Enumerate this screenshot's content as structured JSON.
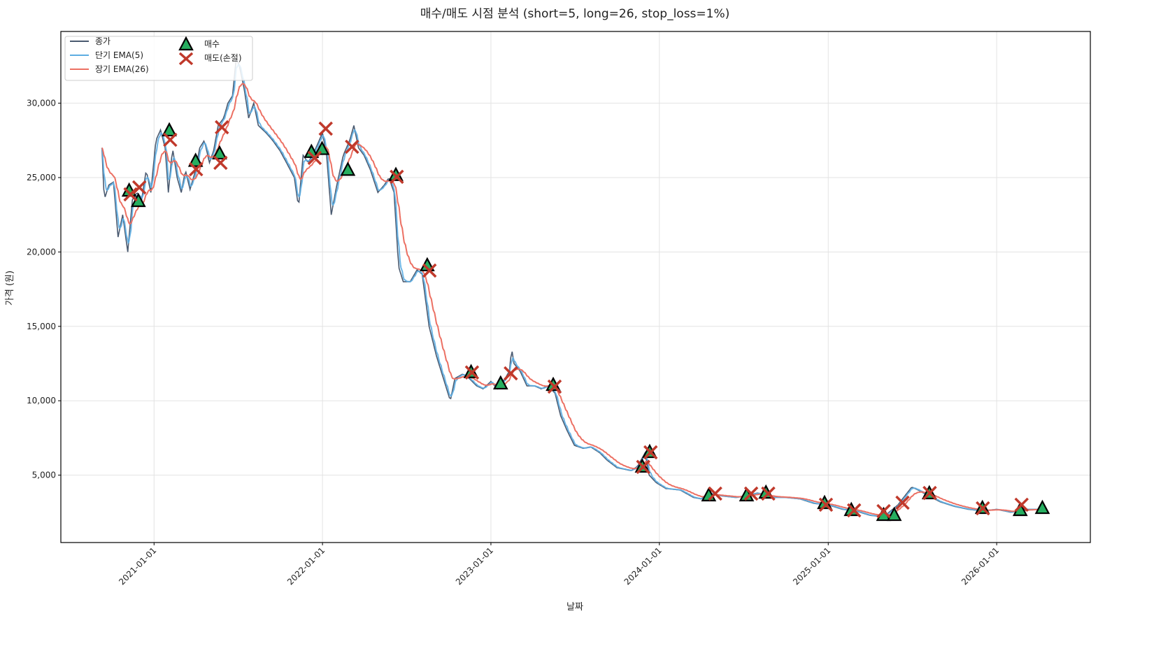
{
  "chart_data": {
    "type": "line",
    "title": "매수/매도 시점 분석 (short=5, long=26, stop_loss=1%)",
    "xlabel": "날짜",
    "ylabel": "가격 (원)",
    "xlim": [
      "2020-06-13",
      "2026-07-23"
    ],
    "ylim": [
      470,
      34820
    ],
    "grid": true,
    "legend_placement": "top-left",
    "legend": [
      {
        "label": "종가",
        "color": "#4a5a70",
        "kind": "line"
      },
      {
        "label": "단기 EMA(5)",
        "color": "#5dade2",
        "kind": "line"
      },
      {
        "label": "장기 EMA(26)",
        "color": "#ec7063",
        "kind": "line"
      },
      {
        "label": "매수",
        "color": "#27ae60",
        "kind": "triangle"
      },
      {
        "label": "매도(손절)",
        "color": "#c0392b",
        "kind": "x"
      }
    ],
    "ema_short_span": 5,
    "ema_long_span": 26,
    "x_ticks": [
      "2021-01-01",
      "2022-01-01",
      "2023-01-01",
      "2024-01-01",
      "2025-01-01",
      "2026-01-01"
    ],
    "y_ticks": [
      5000,
      10000,
      15000,
      20000,
      25000,
      30000
    ],
    "y_tick_labels": [
      "5,000",
      "10,000",
      "15,000",
      "20,000",
      "25,000",
      "30,000"
    ],
    "close": [
      [
        "2020-09-10",
        27000
      ],
      [
        "2020-09-15",
        23500
      ],
      [
        "2020-09-25",
        24500
      ],
      [
        "2020-10-05",
        24700
      ],
      [
        "2020-10-15",
        21000
      ],
      [
        "2020-10-25",
        22500
      ],
      [
        "2020-11-05",
        20000
      ],
      [
        "2020-11-15",
        23500
      ],
      [
        "2020-11-25",
        24000
      ],
      [
        "2020-12-05",
        23500
      ],
      [
        "2020-12-15",
        25500
      ],
      [
        "2020-12-25",
        24000
      ],
      [
        "2021-01-05",
        27500
      ],
      [
        "2021-01-15",
        28200
      ],
      [
        "2021-01-25",
        27000
      ],
      [
        "2021-02-01",
        24000
      ],
      [
        "2021-02-10",
        27000
      ],
      [
        "2021-02-20",
        25000
      ],
      [
        "2021-03-01",
        24000
      ],
      [
        "2021-03-10",
        25500
      ],
      [
        "2021-03-20",
        24200
      ],
      [
        "2021-04-01",
        25500
      ],
      [
        "2021-04-10",
        27000
      ],
      [
        "2021-04-20",
        27500
      ],
      [
        "2021-05-01",
        26000
      ],
      [
        "2021-05-10",
        26800
      ],
      [
        "2021-05-20",
        28500
      ],
      [
        "2021-06-01",
        29000
      ],
      [
        "2021-06-10",
        30000
      ],
      [
        "2021-06-20",
        30500
      ],
      [
        "2021-06-28",
        33000
      ],
      [
        "2021-07-05",
        32500
      ],
      [
        "2021-07-15",
        31000
      ],
      [
        "2021-07-25",
        29000
      ],
      [
        "2021-08-05",
        30000
      ],
      [
        "2021-08-15",
        28500
      ],
      [
        "2021-09-01",
        28000
      ],
      [
        "2021-09-15",
        27500
      ],
      [
        "2021-10-01",
        26800
      ],
      [
        "2021-10-15",
        26000
      ],
      [
        "2021-11-01",
        25000
      ],
      [
        "2021-11-10",
        23000
      ],
      [
        "2021-11-20",
        26500
      ],
      [
        "2021-12-01",
        26000
      ],
      [
        "2021-12-15",
        26800
      ],
      [
        "2022-01-01",
        28000
      ],
      [
        "2022-01-10",
        26500
      ],
      [
        "2022-01-20",
        22500
      ],
      [
        "2022-02-01",
        24500
      ],
      [
        "2022-02-15",
        26500
      ],
      [
        "2022-03-01",
        27500
      ],
      [
        "2022-03-10",
        28500
      ],
      [
        "2022-03-20",
        27000
      ],
      [
        "2022-04-01",
        26500
      ],
      [
        "2022-04-15",
        25500
      ],
      [
        "2022-05-01",
        24000
      ],
      [
        "2022-05-15",
        24500
      ],
      [
        "2022-05-25",
        25000
      ],
      [
        "2022-06-05",
        24000
      ],
      [
        "2022-06-15",
        19000
      ],
      [
        "2022-06-25",
        18000
      ],
      [
        "2022-07-10",
        18000
      ],
      [
        "2022-07-25",
        18800
      ],
      [
        "2022-08-05",
        18500
      ],
      [
        "2022-08-20",
        15000
      ],
      [
        "2022-09-05",
        13000
      ],
      [
        "2022-09-20",
        11500
      ],
      [
        "2022-10-05",
        10000
      ],
      [
        "2022-10-15",
        11500
      ],
      [
        "2022-11-01",
        11800
      ],
      [
        "2022-11-15",
        11500
      ],
      [
        "2022-12-01",
        11000
      ],
      [
        "2022-12-15",
        10800
      ],
      [
        "2023-01-01",
        11300
      ],
      [
        "2023-01-15",
        10800
      ],
      [
        "2023-02-01",
        11500
      ],
      [
        "2023-02-10",
        12000
      ],
      [
        "2023-02-15",
        13500
      ],
      [
        "2023-02-20",
        12500
      ],
      [
        "2023-03-05",
        12000
      ],
      [
        "2023-03-20",
        11000
      ],
      [
        "2023-04-05",
        11000
      ],
      [
        "2023-04-20",
        10800
      ],
      [
        "2023-05-05",
        11000
      ],
      [
        "2023-05-20",
        10500
      ],
      [
        "2023-06-01",
        9000
      ],
      [
        "2023-06-15",
        8000
      ],
      [
        "2023-07-01",
        7000
      ],
      [
        "2023-07-20",
        6800
      ],
      [
        "2023-08-05",
        6900
      ],
      [
        "2023-08-25",
        6500
      ],
      [
        "2023-09-10",
        6000
      ],
      [
        "2023-10-01",
        5500
      ],
      [
        "2023-11-01",
        5300
      ],
      [
        "2023-11-15",
        5600
      ],
      [
        "2023-12-01",
        6500
      ],
      [
        "2023-12-10",
        5000
      ],
      [
        "2023-12-25",
        4500
      ],
      [
        "2024-01-15",
        4100
      ],
      [
        "2024-02-15",
        4000
      ],
      [
        "2024-03-15",
        3500
      ],
      [
        "2024-04-01",
        3400
      ],
      [
        "2024-04-15",
        3800
      ],
      [
        "2024-05-15",
        3600
      ],
      [
        "2024-06-15",
        3500
      ],
      [
        "2024-07-01",
        3600
      ],
      [
        "2024-08-01",
        3800
      ],
      [
        "2024-09-01",
        3500
      ],
      [
        "2024-10-01",
        3500
      ],
      [
        "2024-11-01",
        3400
      ],
      [
        "2024-12-01",
        3100
      ],
      [
        "2025-01-01",
        3000
      ],
      [
        "2025-02-01",
        2700
      ],
      [
        "2025-03-01",
        2600
      ],
      [
        "2025-04-01",
        2300
      ],
      [
        "2025-05-01",
        2200
      ],
      [
        "2025-06-01",
        3000
      ],
      [
        "2025-07-01",
        4200
      ],
      [
        "2025-07-15",
        4000
      ],
      [
        "2025-08-01",
        3700
      ],
      [
        "2025-09-01",
        3200
      ],
      [
        "2025-10-01",
        2900
      ],
      [
        "2025-11-01",
        2700
      ],
      [
        "2025-12-01",
        2600
      ],
      [
        "2026-01-01",
        2700
      ],
      [
        "2026-02-01",
        2500
      ],
      [
        "2026-03-01",
        2700
      ],
      [
        "2026-04-01",
        2700
      ],
      [
        "2026-04-20",
        2600
      ]
    ],
    "buy_signals": [
      [
        "2020-11-08",
        24100
      ],
      [
        "2020-11-28",
        23400
      ],
      [
        "2021-02-03",
        28150
      ],
      [
        "2021-04-01",
        26100
      ],
      [
        "2021-05-23",
        26600
      ],
      [
        "2021-12-08",
        26700
      ],
      [
        "2021-12-31",
        26900
      ],
      [
        "2022-02-25",
        25500
      ],
      [
        "2022-06-09",
        25150
      ],
      [
        "2022-08-16",
        19080
      ],
      [
        "2022-11-19",
        11900
      ],
      [
        "2023-01-22",
        11140
      ],
      [
        "2023-05-16",
        11040
      ],
      [
        "2023-11-25",
        5550
      ],
      [
        "2023-12-11",
        6530
      ],
      [
        "2024-04-17",
        3620
      ],
      [
        "2024-07-08",
        3620
      ],
      [
        "2024-08-19",
        3800
      ],
      [
        "2024-12-24",
        3100
      ],
      [
        "2025-02-20",
        2630
      ],
      [
        "2025-05-01",
        2300
      ],
      [
        "2025-05-24",
        2300
      ],
      [
        "2025-08-08",
        3760
      ],
      [
        "2025-12-01",
        2770
      ],
      [
        "2026-02-21",
        2630
      ],
      [
        "2026-04-10",
        2770
      ]
    ],
    "sell_signals": [
      [
        "2020-11-11",
        23870
      ],
      [
        "2020-11-30",
        24340
      ],
      [
        "2021-02-05",
        27540
      ],
      [
        "2021-04-02",
        25560
      ],
      [
        "2021-05-28",
        28380
      ],
      [
        "2021-05-25",
        25990
      ],
      [
        "2021-12-15",
        26320
      ],
      [
        "2022-01-08",
        28290
      ],
      [
        "2022-03-06",
        27070
      ],
      [
        "2022-06-11",
        25050
      ],
      [
        "2022-08-21",
        18750
      ],
      [
        "2022-11-21",
        11900
      ],
      [
        "2023-02-13",
        11840
      ],
      [
        "2023-05-19",
        10950
      ],
      [
        "2023-11-27",
        5550
      ],
      [
        "2023-12-13",
        6530
      ],
      [
        "2024-05-01",
        3760
      ],
      [
        "2024-07-18",
        3760
      ],
      [
        "2024-08-24",
        3760
      ],
      [
        "2024-12-27",
        3010
      ],
      [
        "2025-02-26",
        2630
      ],
      [
        "2025-05-01",
        2580
      ],
      [
        "2025-06-11",
        3150
      ],
      [
        "2025-08-09",
        3800
      ],
      [
        "2025-12-02",
        2770
      ],
      [
        "2026-02-24",
        3010
      ]
    ]
  }
}
